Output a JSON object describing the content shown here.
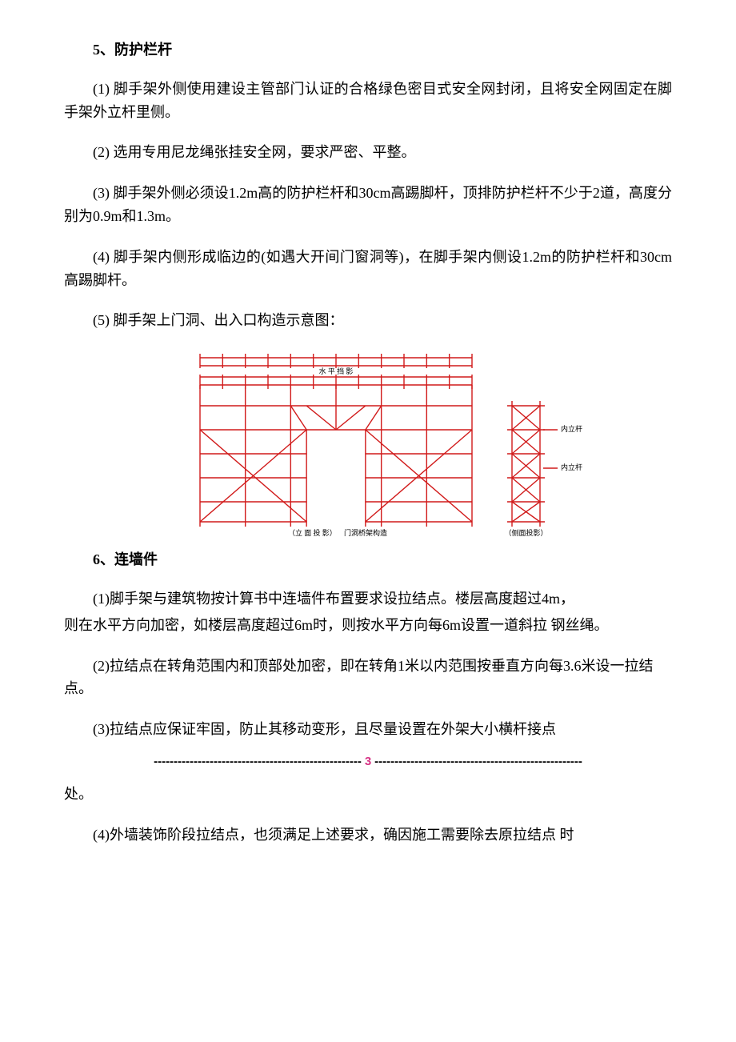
{
  "section5": {
    "heading": "5、防护栏杆",
    "p1": "(1) 脚手架外侧使用建设主管部门认证的合格绿色密目式安全网封闭，且将安全网固定在脚手架外立杆里侧。",
    "p2": "(2) 选用专用尼龙绳张挂安全网，要求严密、平整。",
    "p3": "(3) 脚手架外侧必须设1.2m高的防护栏杆和30cm高踢脚杆，顶排防护栏杆不少于2道，高度分别为0.9m和1.3m。",
    "p4": "(4) 脚手架内侧形成临边的(如遇大开间门窗洞等)，在脚手架内侧设1.2m的防护栏杆和30cm高踢脚杆。",
    "p5": "(5) 脚手架上门洞、出入口构造示意图："
  },
  "diagram": {
    "stroke": "#d11a1a",
    "strokeWidth": 1.4,
    "labels": {
      "top": "水 平 挡 影",
      "elev": "（立 面 投 影）",
      "title": "门洞桥架构造",
      "side": "（侧面投影）",
      "inner1": "内立杆",
      "inner2": "内立杆"
    }
  },
  "section6": {
    "heading": "6、连墙件",
    "p1a": "(1)脚手架与建筑物按计算书中连墙件布置要求设拉结点。楼层高度超过4m，",
    "p1b": "则在水平方向加密，如楼层高度超过6m时，则按水平方向每6m设置一道斜拉 钢丝绳。",
    "p2": "(2)拉结点在转角范围内和顶部处加密，即在转角1米以内范围按垂直方向每3.6米设一拉结点。",
    "p3": "(3)拉结点应保证牢固，防止其移动变形，且尽量设置在外架大小横杆接点",
    "p3cont": "处。",
    "p4": "(4)外墙装饰阶段拉结点，也须满足上述要求，确因施工需要除去原拉结点 时"
  },
  "pageBreak": {
    "dashes": "----------------------------------------------------",
    "num": "3",
    "dashes2": "----------------------------------------------------"
  }
}
